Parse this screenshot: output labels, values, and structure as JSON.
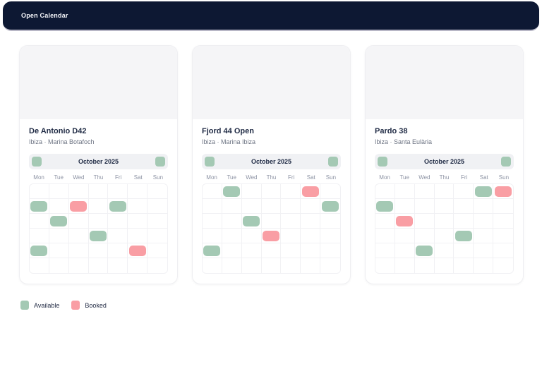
{
  "header": {
    "title": "Open Calendar"
  },
  "colors": {
    "header_bg": "#0D1833",
    "available": "#A4C9B4",
    "booked": "#F99EA4",
    "text_dark": "#1F2A44"
  },
  "weekdays": [
    "Mon",
    "Tue",
    "Wed",
    "Thu",
    "Fri",
    "Sat",
    "Sun"
  ],
  "legend": {
    "available_label": "Available",
    "booked_label": "Booked"
  },
  "cards": [
    {
      "title": "De Antonio D42",
      "location": "Ibiza · Marina Botafoch",
      "month": "October 2025",
      "grid": [
        [
          null,
          null,
          null,
          null,
          null,
          null,
          null
        ],
        [
          "available",
          null,
          "booked",
          null,
          "available",
          null,
          null
        ],
        [
          null,
          "available",
          null,
          null,
          null,
          null,
          null
        ],
        [
          null,
          null,
          null,
          "available",
          null,
          null,
          null
        ],
        [
          "available",
          null,
          null,
          null,
          null,
          "booked",
          null
        ],
        [
          null,
          null,
          null,
          null,
          null,
          null,
          null
        ]
      ]
    },
    {
      "title": "Fjord 44 Open",
      "location": "Ibiza · Marina Ibiza",
      "month": "October 2025",
      "grid": [
        [
          null,
          "available",
          null,
          null,
          null,
          "booked",
          null
        ],
        [
          null,
          null,
          null,
          null,
          null,
          null,
          "available"
        ],
        [
          null,
          null,
          "available",
          null,
          null,
          null,
          null
        ],
        [
          null,
          null,
          null,
          "booked",
          null,
          null,
          null
        ],
        [
          "available",
          null,
          null,
          null,
          null,
          null,
          null
        ],
        [
          null,
          null,
          null,
          null,
          null,
          null,
          null
        ]
      ]
    },
    {
      "title": "Pardo 38",
      "location": "Ibiza · Santa Eulària",
      "month": "October 2025",
      "grid": [
        [
          null,
          null,
          null,
          null,
          null,
          "available",
          "booked"
        ],
        [
          "available",
          null,
          null,
          null,
          null,
          null,
          null
        ],
        [
          null,
          "booked",
          null,
          null,
          null,
          null,
          null
        ],
        [
          null,
          null,
          null,
          null,
          "available",
          null,
          null
        ],
        [
          null,
          null,
          "available",
          null,
          null,
          null,
          null
        ],
        [
          null,
          null,
          null,
          null,
          null,
          null,
          null
        ]
      ]
    }
  ]
}
